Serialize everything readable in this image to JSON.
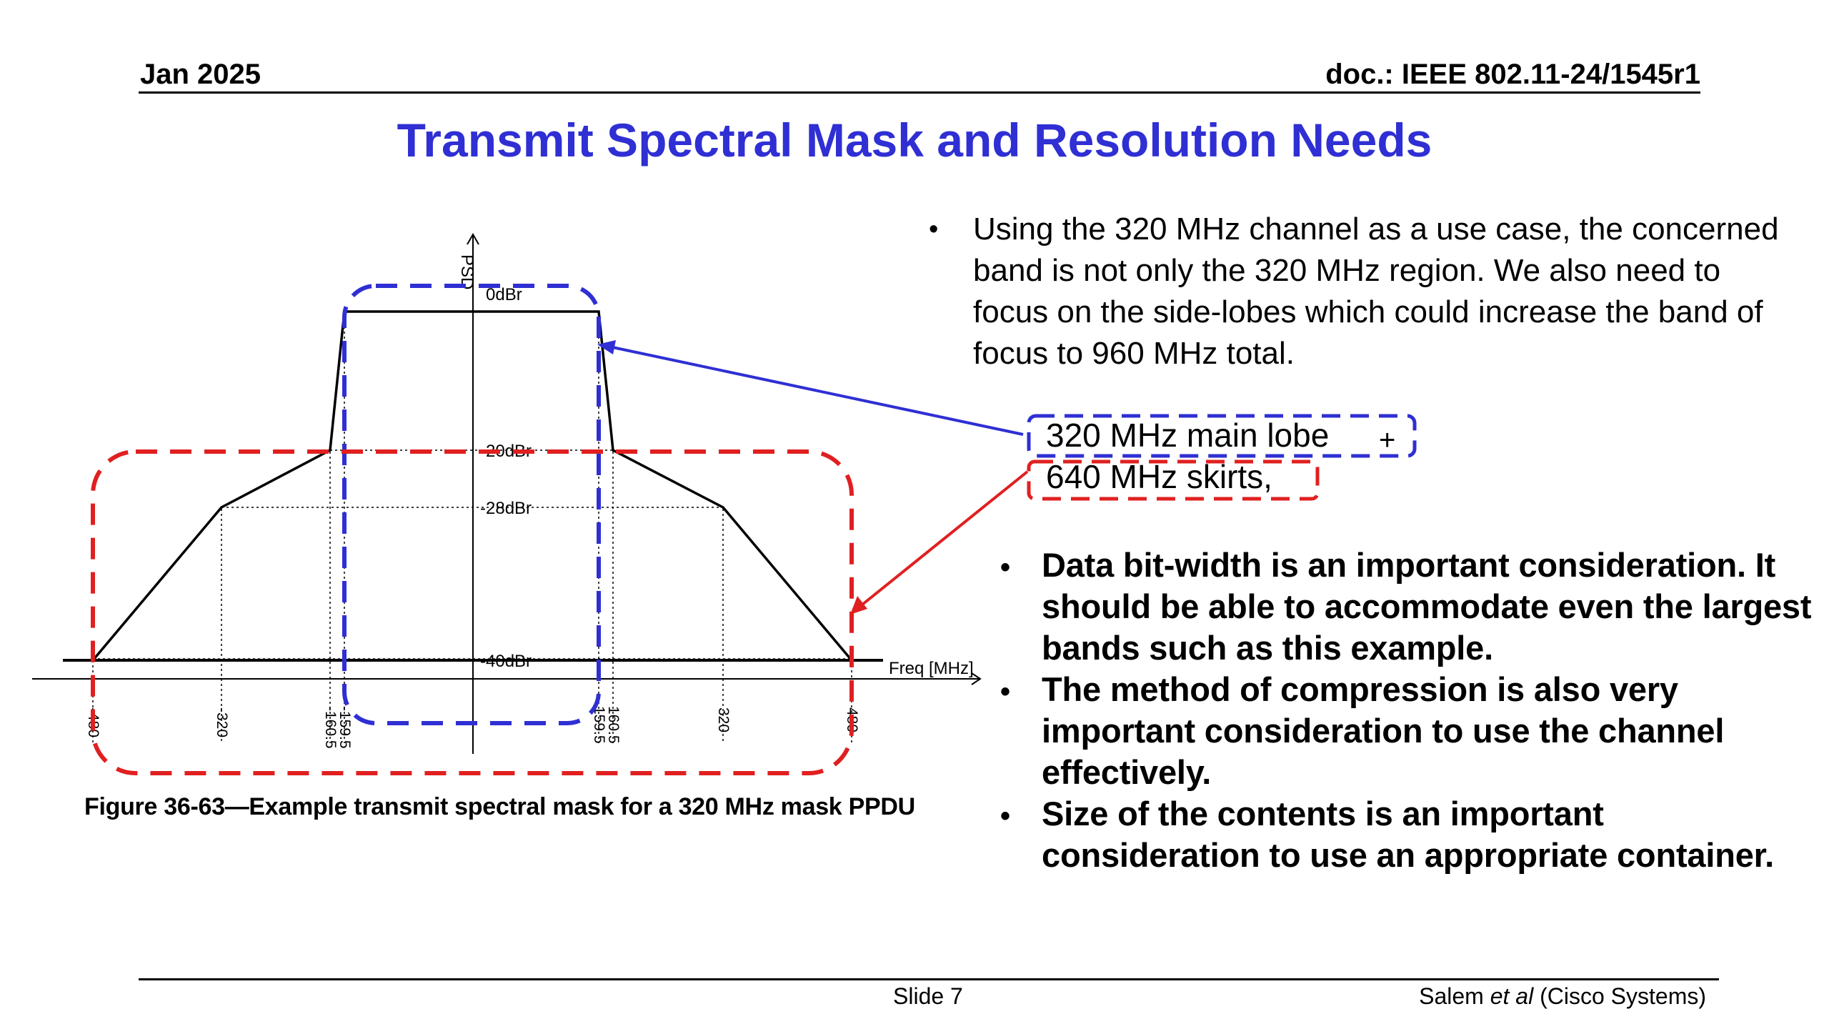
{
  "header": {
    "date": "Jan 2025",
    "doc": "doc.: IEEE 802.11-24/1545r1"
  },
  "title": "Transmit Spectral Mask and Resolution Needs",
  "figure": {
    "axis_y_label": "PSD",
    "axis_x_label": "Freq [MHz]",
    "levels": [
      "0dBr",
      "-20dBr",
      "-28dBr",
      "-40dBr"
    ],
    "ticks_left": [
      "-480",
      "-320",
      "-160.5",
      "-159.5"
    ],
    "ticks_right": [
      "159.5",
      "160.5",
      "320",
      "480"
    ],
    "caption": "Figure 36-63—Example transmit spectral mask for a 320 MHz mask PPDU",
    "mask_points": [
      {
        "freq": -480,
        "dbr": -40
      },
      {
        "freq": -320,
        "dbr": -28
      },
      {
        "freq": -160.5,
        "dbr": -20
      },
      {
        "freq": -159.5,
        "dbr": 0
      },
      {
        "freq": 159.5,
        "dbr": 0
      },
      {
        "freq": 160.5,
        "dbr": -20
      },
      {
        "freq": 320,
        "dbr": -28
      },
      {
        "freq": 480,
        "dbr": -40
      }
    ],
    "colors": {
      "main_lobe": "#2f2fd4",
      "skirts": "#e02020",
      "mask": "#000000"
    }
  },
  "intro": "Using the 320 MHz channel as a use case, the concerned band is not only the 320 MHz region. We also need to focus on the side-lobes which could increase the band of focus to 960 MHz total.",
  "callouts": {
    "main_lobe": "320 MHz main lobe",
    "plus": "+",
    "skirts": "640 MHz skirts,"
  },
  "bullets": [
    "Data bit-width is an important consideration. It should be able to accommodate even the largest bands such as this example.",
    "The method of compression is also very important consideration to use the channel effectively.",
    "Size of the contents is an important consideration to use an appropriate container."
  ],
  "bullet_glyph": "•",
  "footer": {
    "slide": "Slide 7",
    "author_prefix": "Salem ",
    "author_em": "et al",
    "author_suffix": " (Cisco Systems)"
  }
}
